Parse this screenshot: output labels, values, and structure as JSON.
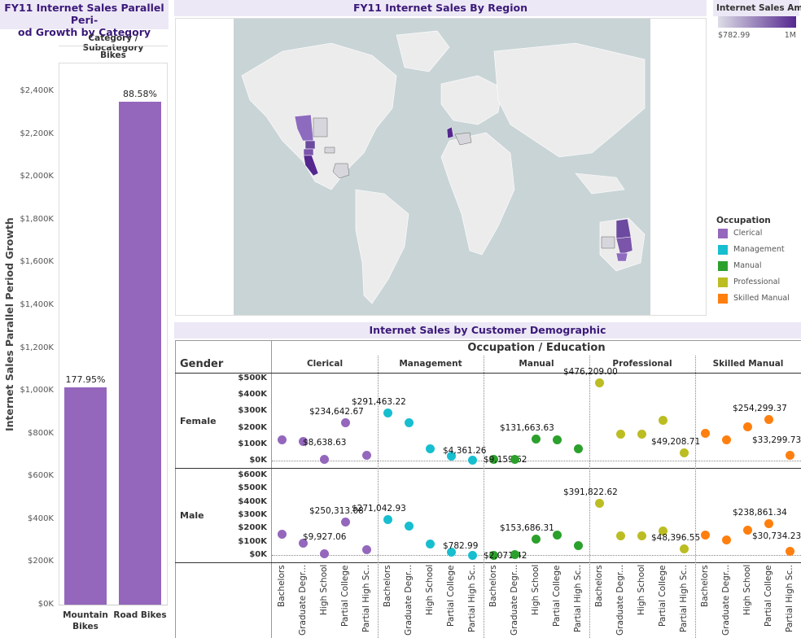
{
  "left_chart": {
    "title": "FY11 Internet Sales Parallel Peri-od Growth by Category",
    "title_line1": "FY11 Internet Sales Parallel Peri-",
    "title_line2": "od Growth by Category",
    "header": "Category  /  Subcategory",
    "category": "Bikes",
    "y_axis_label": "Internet Sales Parallel Period Growth",
    "y_ticks": [
      "$2,400K",
      "$2,200K",
      "$2,000K",
      "$1,800K",
      "$1,600K",
      "$1,400K",
      "$1,200K",
      "$1,000K",
      "$800K",
      "$600K",
      "$400K",
      "$200K",
      "$0K"
    ],
    "bars": [
      {
        "label_line1": "Mountain",
        "label_line2": "Bikes",
        "pct": "177.95%"
      },
      {
        "label_line1": "Road Bikes",
        "label_line2": "",
        "pct": "88.58%"
      }
    ],
    "bar_color": "#9467bd"
  },
  "map": {
    "title": "FY11 Internet Sales By Region",
    "legend_title": "Internet Sales Amo..",
    "legend_min": "$782.99",
    "legend_max": "1M",
    "gradient_from": "#dddde6",
    "gradient_to": "#54278f"
  },
  "occupation_legend": {
    "title": "Occupation",
    "items": [
      {
        "label": "Clerical",
        "color": "#9467bd"
      },
      {
        "label": "Management",
        "color": "#17becf"
      },
      {
        "label": "Manual",
        "color": "#2ca02c"
      },
      {
        "label": "Professional",
        "color": "#bcbd22"
      },
      {
        "label": "Skilled Manual",
        "color": "#ff7f0e"
      }
    ]
  },
  "demographic": {
    "title": "Internet Sales by Customer Demographic",
    "top_header": "Occupation  /  Education",
    "gender_header": "Gender",
    "occupations": [
      "Clerical",
      "Management",
      "Manual",
      "Professional",
      "Skilled Manual"
    ],
    "genders": [
      "Female",
      "Male"
    ],
    "female_ticks": [
      "$500K",
      "$400K",
      "$300K",
      "$200K",
      "$100K",
      "$0K"
    ],
    "male_ticks": [
      "$600K",
      "$500K",
      "$400K",
      "$300K",
      "$200K",
      "$100K",
      "$0K"
    ],
    "education": [
      "Bachelors",
      "Graduate Degr...",
      "High School",
      "Partial College",
      "Partial High Sc.."
    ],
    "labels": {
      "female": [
        "$234,642.67",
        "$8,638.63",
        "$291,463.22",
        "$4,361.26",
        "$131,663.63",
        "$9,159.62",
        "$476,209.00",
        "$49,208.71",
        "$254,299.37",
        "$33,299.73"
      ],
      "male": [
        "$250,313.08",
        "$9,927.06",
        "$271,042.93",
        "$782.99",
        "$153,686.31",
        "$2,071.42",
        "$391,822.62",
        "$48,396.55",
        "$238,861.34",
        "$30,734.23"
      ]
    }
  },
  "chart_data": [
    {
      "type": "bar",
      "title": "FY11 Internet Sales Parallel Period Growth by Category",
      "xlabel": "Category / Subcategory",
      "ylabel": "Internet Sales Parallel Period Growth",
      "categories": [
        "Mountain Bikes",
        "Road Bikes"
      ],
      "values": [
        1017000,
        2350000
      ],
      "data_labels": [
        "177.95%",
        "88.58%"
      ],
      "ylim": [
        0,
        2500000
      ]
    },
    {
      "type": "scatter",
      "title": "Internet Sales by Customer Demographic",
      "xlabel": "Occupation / Education",
      "ylabel": "Gender",
      "series": [
        {
          "gender": "Female",
          "occupation": "Clerical",
          "values": [
            128000,
            120000,
            8638.63,
            234642.67,
            35000
          ]
        },
        {
          "gender": "Female",
          "occupation": "Management",
          "values": [
            291463.22,
            234000,
            75000,
            30000,
            4361.26
          ]
        },
        {
          "gender": "Female",
          "occupation": "Manual",
          "values": [
            9159.62,
            10000,
            131663.63,
            128000,
            75000
          ]
        },
        {
          "gender": "Female",
          "occupation": "Professional",
          "values": [
            476209.0,
            165000,
            165000,
            250000,
            49208.71
          ]
        },
        {
          "gender": "Female",
          "occupation": "Skilled Manual",
          "values": [
            170000,
            130000,
            210000,
            254299.37,
            33299.73
          ]
        },
        {
          "gender": "Male",
          "occupation": "Clerical",
          "values": [
            160000,
            90000,
            9927.06,
            250313.08,
            40000
          ]
        },
        {
          "gender": "Male",
          "occupation": "Management",
          "values": [
            271042.93,
            222000,
            85000,
            25000,
            782.99
          ]
        },
        {
          "gender": "Male",
          "occupation": "Manual",
          "values": [
            2071.42,
            5000,
            120000,
            153686.31,
            75000
          ]
        },
        {
          "gender": "Male",
          "occupation": "Professional",
          "values": [
            391822.62,
            150000,
            150000,
            185000,
            48396.55
          ]
        },
        {
          "gender": "Male",
          "occupation": "Skilled Manual",
          "values": [
            155000,
            115000,
            190000,
            238861.34,
            30734.23
          ]
        }
      ]
    }
  ]
}
